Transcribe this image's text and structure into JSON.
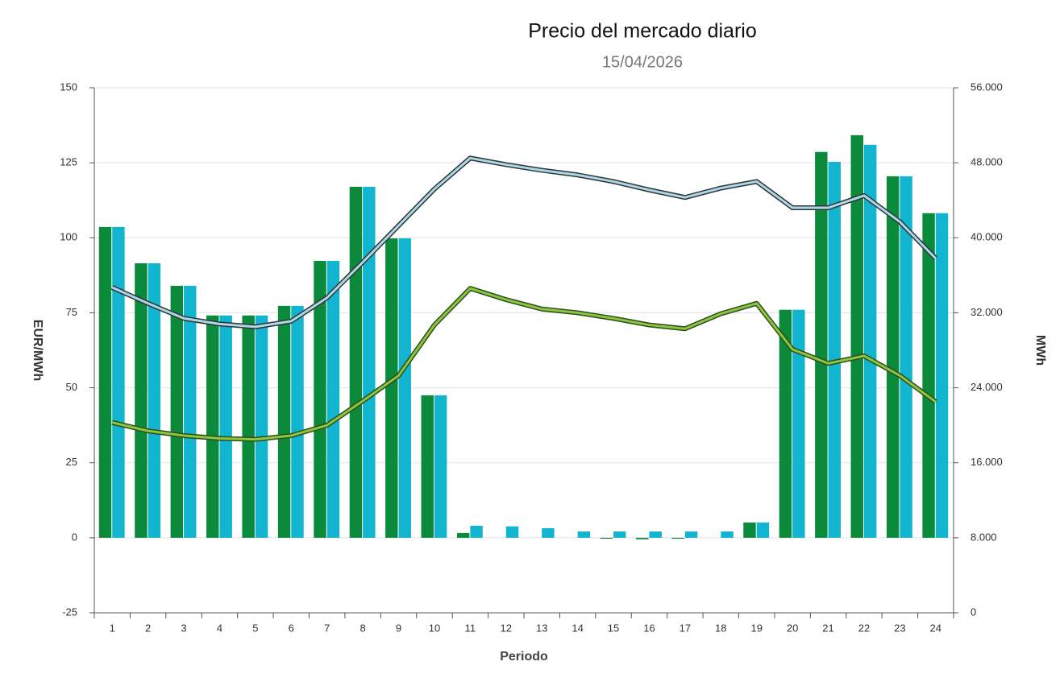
{
  "chart_data": {
    "type": "bar",
    "title": "Precio del mercado diario",
    "subtitle": "15/04/2026",
    "x_label": "Periodo",
    "y_label": "EUR/MWh",
    "y2_label": "MWh",
    "categories": [
      "1",
      "2",
      "3",
      "4",
      "5",
      "6",
      "7",
      "8",
      "9",
      "10",
      "11",
      "12",
      "13",
      "14",
      "15",
      "16",
      "17",
      "18",
      "19",
      "20",
      "21",
      "22",
      "23",
      "24"
    ],
    "ylim": [
      -25,
      150
    ],
    "yticks": [
      -25,
      0,
      25,
      50,
      75,
      100,
      125,
      150
    ],
    "y2lim": [
      0,
      56000
    ],
    "y2ticks": [
      0,
      {
        "value": 8000,
        "label": "8.000"
      },
      {
        "value": 16000,
        "label": "16.000"
      },
      {
        "value": 24000,
        "label": "24.000"
      },
      {
        "value": 32000,
        "label": "32.000"
      },
      {
        "value": 40000,
        "label": "40.000"
      },
      {
        "value": 48000,
        "label": "48.000"
      },
      {
        "value": 56000,
        "label": "56.000"
      }
    ],
    "grid": true,
    "series": [
      {
        "type": "bar",
        "color": "#0b8a3c",
        "values": [
          103.6,
          91.5,
          84.0,
          74.1,
          74.1,
          77.3,
          92.3,
          117.0,
          99.8,
          47.5,
          1.6,
          0,
          0,
          0,
          -0.3,
          -0.5,
          -0.3,
          0,
          5.1,
          76.0,
          128.6,
          134.2,
          120.5,
          108.2
        ]
      },
      {
        "type": "bar",
        "color": "#12b5cf",
        "values": [
          103.6,
          91.5,
          84.0,
          74.1,
          74.1,
          77.3,
          92.3,
          117.0,
          99.8,
          47.5,
          4.0,
          3.8,
          3.2,
          2.1,
          2.1,
          2.1,
          2.1,
          2.1,
          5.1,
          76.0,
          125.3,
          131.0,
          120.5,
          108.2
        ]
      },
      {
        "type": "line",
        "axis": "y2",
        "color": "#a9d8e8",
        "edge_color": "#333333",
        "values": [
          34700,
          33000,
          31400,
          30800,
          30500,
          31100,
          33600,
          37400,
          41300,
          45200,
          48500,
          47800,
          47200,
          46700,
          46000,
          45100,
          44300,
          45300,
          46000,
          43200,
          43200,
          44500,
          41700,
          37800
        ]
      },
      {
        "type": "line",
        "axis": "y2",
        "color": "#8cc63f",
        "edge_color": "#2e4d1f",
        "values": [
          20300,
          19400,
          18900,
          18600,
          18500,
          18900,
          20000,
          22600,
          25300,
          30700,
          34600,
          33400,
          32400,
          32000,
          31400,
          30700,
          30300,
          31900,
          33000,
          28100,
          26600,
          27400,
          25300,
          22500
        ]
      }
    ]
  }
}
